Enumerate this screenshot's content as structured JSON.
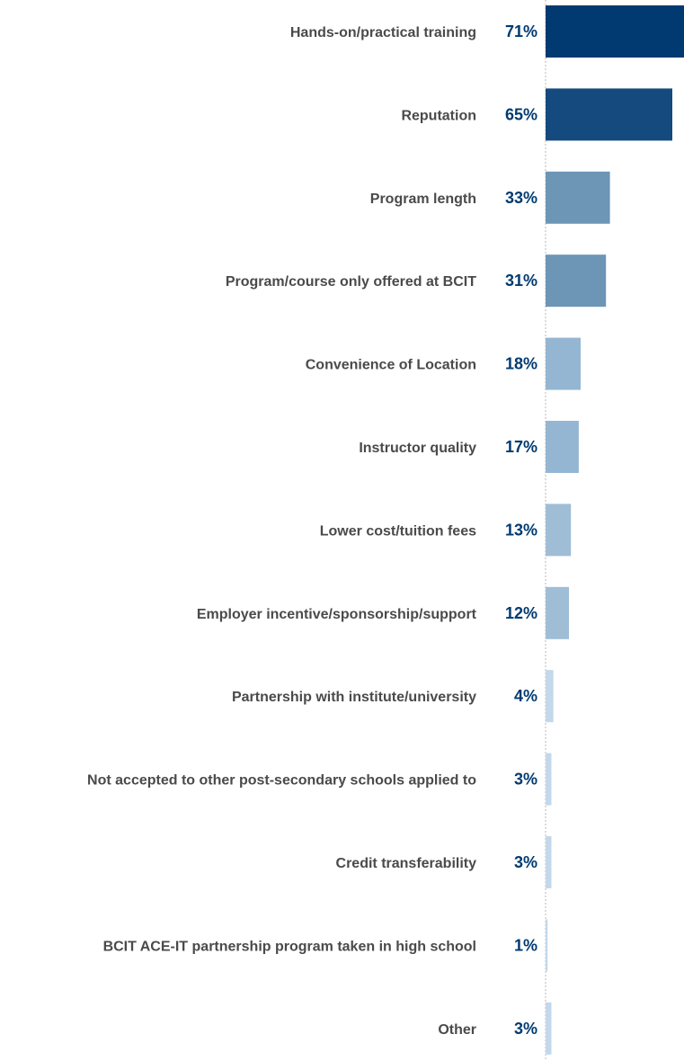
{
  "chart_data": {
    "type": "bar",
    "orientation": "horizontal",
    "categories": [
      "Hands-on/practical training",
      "Reputation",
      "Program length",
      "Program/course only offered at BCIT",
      "Convenience of Location",
      "Instructor quality",
      "Lower cost/tuition fees",
      "Employer incentive/sponsorship/support",
      "Partnership with institute/university",
      "Not accepted to other post-secondary schools applied to",
      "Credit transferability",
      "BCIT ACE-IT partnership program taken in high school",
      "Other"
    ],
    "values": [
      71,
      65,
      33,
      31,
      18,
      17,
      13,
      12,
      4,
      3,
      3,
      1,
      3
    ],
    "value_labels": [
      "71%",
      "65%",
      "33%",
      "31%",
      "18%",
      "17%",
      "13%",
      "12%",
      "4%",
      "3%",
      "3%",
      "1%",
      "3%"
    ],
    "bar_colors": [
      "#003a70",
      "#144a7e",
      "#6c95b6",
      "#6c95b6",
      "#94b6d2",
      "#94b6d2",
      "#a0bdd6",
      "#a0bdd6",
      "#c3d8ea",
      "#c3d8ea",
      "#c3d8ea",
      "#c3d8ea",
      "#c3d8ea"
    ],
    "value_label_color": "#003a70",
    "category_label_color": "#4a4a4a",
    "axis_line": "dashed vertical baseline",
    "xlim": [
      0,
      71
    ],
    "grid": false,
    "legend": "none"
  }
}
